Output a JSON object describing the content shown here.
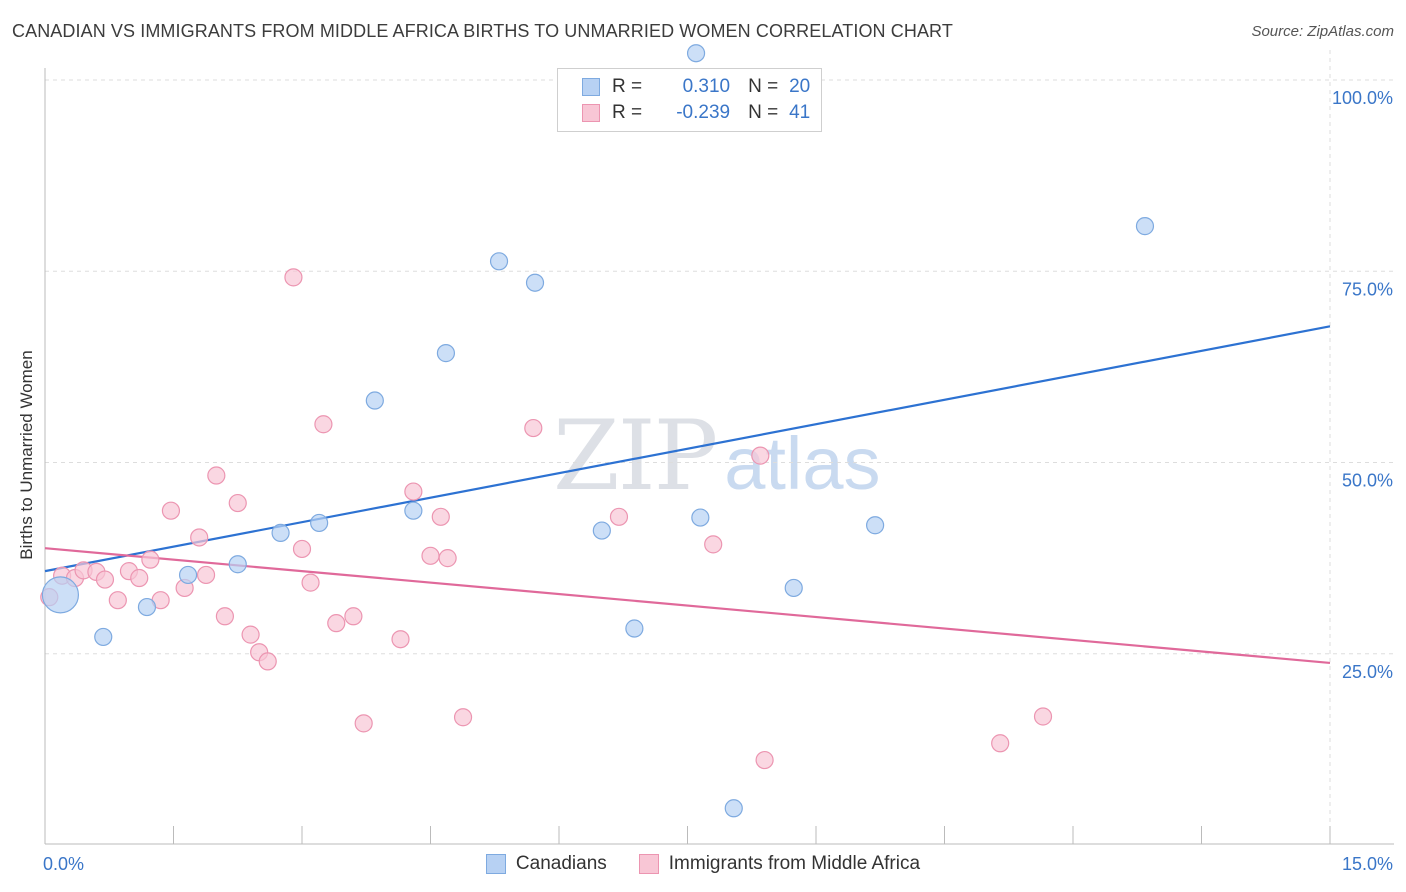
{
  "header": {
    "title": "CANADIAN VS IMMIGRANTS FROM MIDDLE AFRICA BIRTHS TO UNMARRIED WOMEN CORRELATION CHART",
    "source": "Source: ZipAtlas.com"
  },
  "watermark": {
    "zip": "ZIP",
    "atlas": "atlas"
  },
  "colors": {
    "blue_fill": "#b7d1f3",
    "blue_stroke": "#7eaae0",
    "blue_line": "#2d72d2",
    "pink_fill": "#f8c6d5",
    "pink_stroke": "#ec95b1",
    "pink_line": "#e0699a",
    "tick_label": "#3a76c8",
    "grid": "#dddddd"
  },
  "legend_top": [
    {
      "r_label": "R =",
      "r_value": "0.310",
      "n_label": "N =",
      "n_value": "20"
    },
    {
      "r_label": "R =",
      "r_value": "-0.239",
      "n_label": "N =",
      "n_value": "41"
    }
  ],
  "chart_data": {
    "type": "scatter",
    "title": "CANADIAN VS IMMIGRANTS FROM MIDDLE AFRICA BIRTHS TO UNMARRIED WOMEN CORRELATION CHART",
    "xlabel": "",
    "ylabel": "Births to Unmarried Women",
    "xlim": [
      0,
      15
    ],
    "ylim": [
      0,
      105
    ],
    "x_tick_labels": [
      "0.0%",
      "15.0%"
    ],
    "y_tick_labels": [
      "25.0%",
      "50.0%",
      "75.0%",
      "100.0%"
    ],
    "y_ticks": [
      25,
      50,
      75,
      100
    ],
    "grid": true,
    "legend": "bottom",
    "series": [
      {
        "name": "Canadians",
        "r": 0.31,
        "n": 20,
        "trend": {
          "x": [
            0,
            15
          ],
          "y": [
            35.8,
            67.8
          ]
        },
        "points": [
          {
            "x": 0.18,
            "y": 32.7,
            "big": true
          },
          {
            "x": 0.68,
            "y": 27.2
          },
          {
            "x": 1.19,
            "y": 31.1
          },
          {
            "x": 1.67,
            "y": 35.3
          },
          {
            "x": 2.25,
            "y": 36.7
          },
          {
            "x": 2.75,
            "y": 40.8
          },
          {
            "x": 3.2,
            "y": 42.1
          },
          {
            "x": 3.85,
            "y": 58.1
          },
          {
            "x": 4.3,
            "y": 43.7
          },
          {
            "x": 4.68,
            "y": 64.3
          },
          {
            "x": 5.3,
            "y": 76.3
          },
          {
            "x": 5.72,
            "y": 73.5
          },
          {
            "x": 6.5,
            "y": 41.1
          },
          {
            "x": 6.88,
            "y": 28.3
          },
          {
            "x": 7.65,
            "y": 42.8
          },
          {
            "x": 8.04,
            "y": 4.8
          },
          {
            "x": 8.74,
            "y": 33.6
          },
          {
            "x": 9.69,
            "y": 41.8
          },
          {
            "x": 12.84,
            "y": 80.9
          },
          {
            "x": 7.6,
            "y": 103.5
          }
        ]
      },
      {
        "name": "Immigrants from Middle Africa",
        "r": -0.239,
        "n": 41,
        "trend": {
          "x": [
            0,
            15
          ],
          "y": [
            38.8,
            23.8
          ]
        },
        "points": [
          {
            "x": 0.05,
            "y": 32.4
          },
          {
            "x": 0.2,
            "y": 35.2
          },
          {
            "x": 0.35,
            "y": 34.9
          },
          {
            "x": 0.45,
            "y": 35.9
          },
          {
            "x": 0.6,
            "y": 35.7
          },
          {
            "x": 0.7,
            "y": 34.7
          },
          {
            "x": 0.85,
            "y": 32.0
          },
          {
            "x": 0.98,
            "y": 35.8
          },
          {
            "x": 1.1,
            "y": 34.9
          },
          {
            "x": 1.23,
            "y": 37.3
          },
          {
            "x": 1.35,
            "y": 32.0
          },
          {
            "x": 1.47,
            "y": 43.7
          },
          {
            "x": 1.63,
            "y": 33.6
          },
          {
            "x": 1.8,
            "y": 40.2
          },
          {
            "x": 1.88,
            "y": 35.3
          },
          {
            "x": 2.0,
            "y": 48.3
          },
          {
            "x": 2.1,
            "y": 29.9
          },
          {
            "x": 2.25,
            "y": 44.7
          },
          {
            "x": 2.4,
            "y": 27.5
          },
          {
            "x": 2.5,
            "y": 25.2
          },
          {
            "x": 2.6,
            "y": 24.0
          },
          {
            "x": 2.9,
            "y": 74.2
          },
          {
            "x": 3.0,
            "y": 38.7
          },
          {
            "x": 3.1,
            "y": 34.3
          },
          {
            "x": 3.25,
            "y": 55.0
          },
          {
            "x": 3.4,
            "y": 29.0
          },
          {
            "x": 3.6,
            "y": 29.9
          },
          {
            "x": 3.72,
            "y": 15.9
          },
          {
            "x": 4.15,
            "y": 26.9
          },
          {
            "x": 4.3,
            "y": 46.2
          },
          {
            "x": 4.5,
            "y": 37.8
          },
          {
            "x": 4.62,
            "y": 42.9
          },
          {
            "x": 4.7,
            "y": 37.5
          },
          {
            "x": 4.88,
            "y": 16.7
          },
          {
            "x": 5.7,
            "y": 54.5
          },
          {
            "x": 6.7,
            "y": 42.9
          },
          {
            "x": 7.8,
            "y": 39.3
          },
          {
            "x": 8.35,
            "y": 50.9
          },
          {
            "x": 8.4,
            "y": 11.1
          },
          {
            "x": 11.15,
            "y": 13.3
          },
          {
            "x": 11.65,
            "y": 16.8
          }
        ]
      }
    ]
  }
}
